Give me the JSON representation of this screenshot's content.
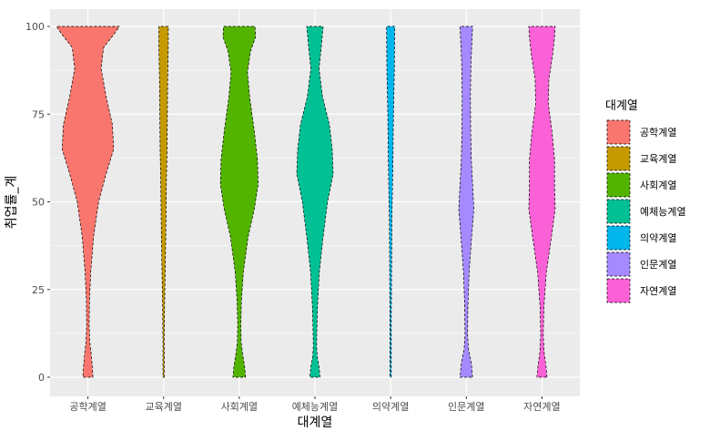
{
  "chart_data": {
    "type": "violin",
    "title": "",
    "xlabel": "대계열",
    "ylabel": "취업률_계",
    "ylim": [
      0,
      100
    ],
    "yticks": [
      0,
      25,
      50,
      75,
      100
    ],
    "grid": true,
    "legend": {
      "title": "대계열",
      "placement": "right"
    },
    "categories": [
      "공학계열",
      "교육계열",
      "사회계열",
      "예체능계열",
      "의약계열",
      "인문계열",
      "자연계열"
    ],
    "colors": [
      "#F8766D",
      "#C49A00",
      "#53B400",
      "#00C094",
      "#00B6EB",
      "#A58AFF",
      "#FB61D7"
    ],
    "series": [
      {
        "name": "공학계열",
        "profile": [
          [
            0,
            0.16
          ],
          [
            3,
            0.14
          ],
          [
            7,
            0.1
          ],
          [
            10,
            0.06
          ],
          [
            15,
            0.04
          ],
          [
            22,
            0.05
          ],
          [
            30,
            0.09
          ],
          [
            40,
            0.18
          ],
          [
            50,
            0.34
          ],
          [
            58,
            0.58
          ],
          [
            65,
            0.82
          ],
          [
            72,
            0.78
          ],
          [
            80,
            0.58
          ],
          [
            88,
            0.42
          ],
          [
            94,
            0.5
          ],
          [
            98,
            0.85
          ],
          [
            100,
            1.0
          ]
        ]
      },
      {
        "name": "교육계열",
        "profile": [
          [
            0,
            0.02
          ],
          [
            10,
            0.02
          ],
          [
            20,
            0.03
          ],
          [
            30,
            0.05
          ],
          [
            40,
            0.07
          ],
          [
            48,
            0.08
          ],
          [
            56,
            0.09
          ],
          [
            65,
            0.11
          ],
          [
            75,
            0.12
          ],
          [
            85,
            0.13
          ],
          [
            95,
            0.15
          ],
          [
            100,
            0.15
          ]
        ]
      },
      {
        "name": "사회계열",
        "profile": [
          [
            0,
            0.2
          ],
          [
            3,
            0.17
          ],
          [
            7,
            0.1
          ],
          [
            10,
            0.06
          ],
          [
            15,
            0.05
          ],
          [
            22,
            0.07
          ],
          [
            30,
            0.13
          ],
          [
            40,
            0.28
          ],
          [
            48,
            0.48
          ],
          [
            55,
            0.6
          ],
          [
            62,
            0.58
          ],
          [
            70,
            0.48
          ],
          [
            80,
            0.33
          ],
          [
            87,
            0.26
          ],
          [
            93,
            0.36
          ],
          [
            97,
            0.52
          ],
          [
            100,
            0.5
          ]
        ]
      },
      {
        "name": "예체능계열",
        "profile": [
          [
            0,
            0.16
          ],
          [
            3,
            0.13
          ],
          [
            6,
            0.07
          ],
          [
            9,
            0.05
          ],
          [
            13,
            0.06
          ],
          [
            20,
            0.08
          ],
          [
            30,
            0.14
          ],
          [
            40,
            0.26
          ],
          [
            50,
            0.4
          ],
          [
            58,
            0.58
          ],
          [
            65,
            0.55
          ],
          [
            72,
            0.46
          ],
          [
            80,
            0.24
          ],
          [
            88,
            0.13
          ],
          [
            94,
            0.2
          ],
          [
            100,
            0.26
          ]
        ]
      },
      {
        "name": "의약계열",
        "profile": [
          [
            0,
            0.02
          ],
          [
            15,
            0.02
          ],
          [
            30,
            0.03
          ],
          [
            45,
            0.04
          ],
          [
            60,
            0.07
          ],
          [
            75,
            0.09
          ],
          [
            88,
            0.12
          ],
          [
            100,
            0.13
          ]
        ]
      },
      {
        "name": "인문계열",
        "profile": [
          [
            0,
            0.2
          ],
          [
            4,
            0.16
          ],
          [
            8,
            0.07
          ],
          [
            12,
            0.04
          ],
          [
            20,
            0.05
          ],
          [
            30,
            0.09
          ],
          [
            40,
            0.17
          ],
          [
            48,
            0.24
          ],
          [
            55,
            0.2
          ],
          [
            62,
            0.16
          ],
          [
            70,
            0.14
          ],
          [
            80,
            0.13
          ],
          [
            90,
            0.15
          ],
          [
            96,
            0.18
          ],
          [
            100,
            0.2
          ]
        ]
      },
      {
        "name": "자연계열",
        "profile": [
          [
            0,
            0.16
          ],
          [
            3,
            0.13
          ],
          [
            7,
            0.07
          ],
          [
            12,
            0.04
          ],
          [
            20,
            0.06
          ],
          [
            30,
            0.14
          ],
          [
            40,
            0.3
          ],
          [
            48,
            0.42
          ],
          [
            55,
            0.4
          ],
          [
            62,
            0.4
          ],
          [
            70,
            0.32
          ],
          [
            78,
            0.2
          ],
          [
            85,
            0.22
          ],
          [
            92,
            0.34
          ],
          [
            97,
            0.4
          ],
          [
            100,
            0.42
          ]
        ]
      }
    ]
  }
}
